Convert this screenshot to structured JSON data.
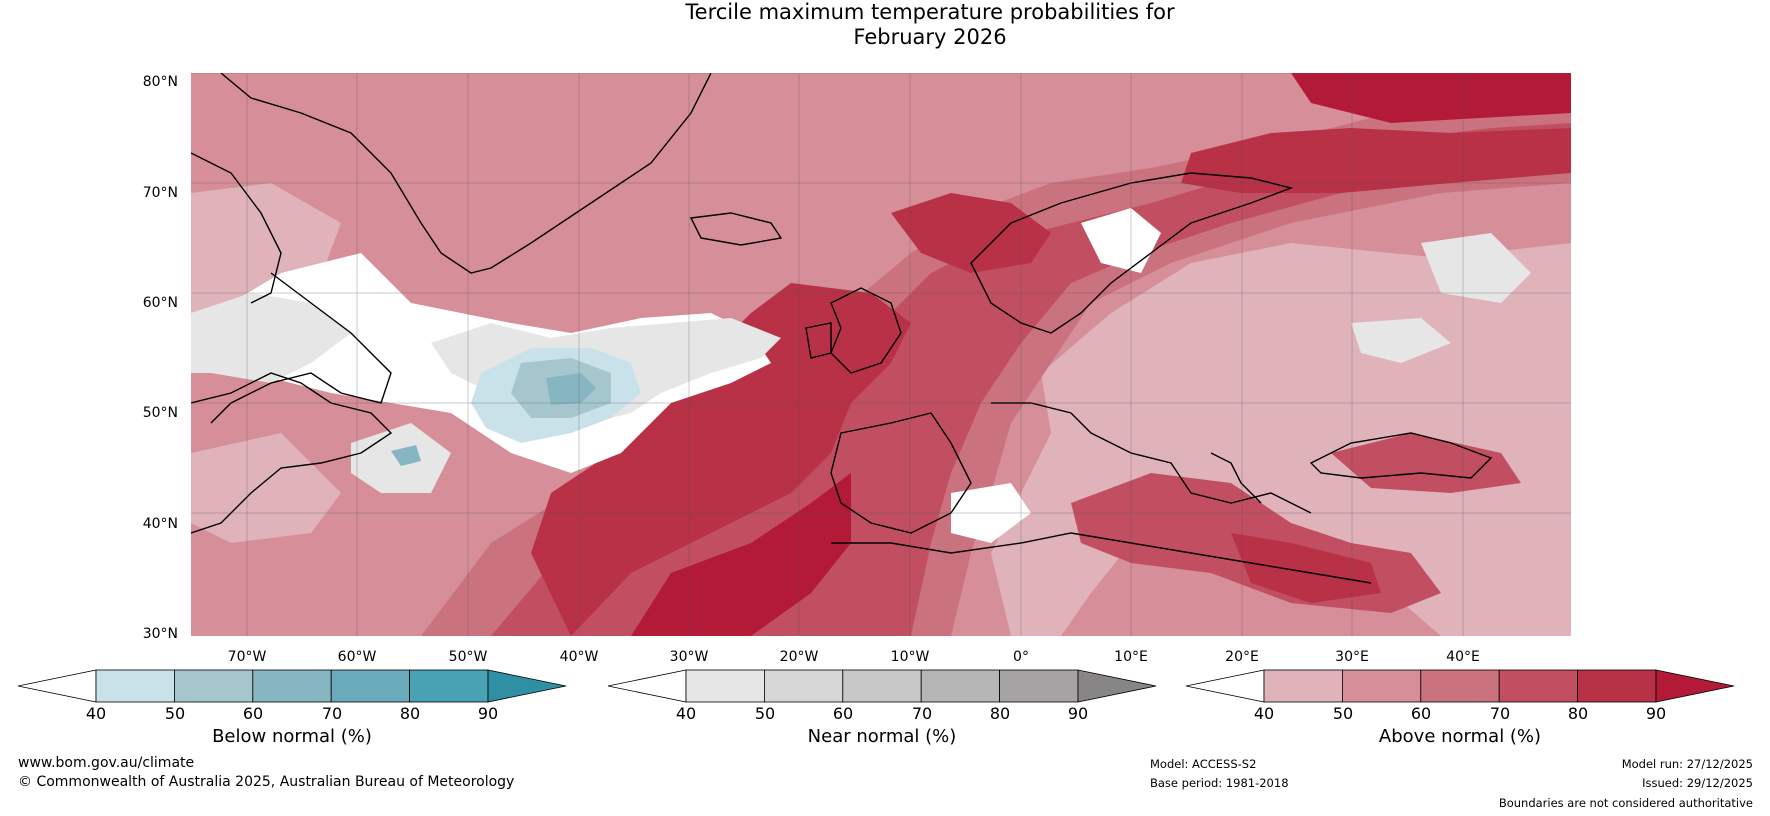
{
  "title_line1": "Tercile maximum temperature probabilities for",
  "title_line2": "February 2026",
  "map": {
    "latitude_labels": [
      "80°N",
      "70°N",
      "60°N",
      "50°N",
      "40°N",
      "30°N"
    ],
    "longitude_labels": [
      "70°W",
      "60°W",
      "50°W",
      "40°W",
      "30°W",
      "20°W",
      "10°W",
      "0°",
      "10°E",
      "20°E",
      "30°E",
      "40°E"
    ]
  },
  "legends": [
    {
      "title": "Below normal (%)",
      "ticks": [
        "40",
        "50",
        "60",
        "70",
        "80",
        "90"
      ],
      "colors": [
        "#ffffff",
        "#c9e1e8",
        "#a6c6cd",
        "#87b5c2",
        "#6aabbb",
        "#48a2b3",
        "#2f8fa3"
      ]
    },
    {
      "title": "Near normal (%)",
      "ticks": [
        "40",
        "50",
        "60",
        "70",
        "80",
        "90"
      ],
      "colors": [
        "#ffffff",
        "#e6e6e6",
        "#d7d7d7",
        "#c8c8c8",
        "#b6b6b6",
        "#a5a3a3",
        "#878585"
      ]
    },
    {
      "title": "Above normal (%)",
      "ticks": [
        "40",
        "50",
        "60",
        "70",
        "80",
        "90"
      ],
      "colors": [
        "#ffffff",
        "#e0b3bb",
        "#d68e99",
        "#cb727f",
        "#c14f61",
        "#b83146",
        "#b21a38"
      ]
    }
  ],
  "footer": {
    "website": "www.bom.gov.au/climate",
    "copyright": "© Commonwealth of Australia 2025, Australian Bureau of Meteorology",
    "model": "Model: ACCESS-S2",
    "base_period": "Base period: 1981-2018",
    "model_run": "Model run: 27/12/2025",
    "issued": "Issued: 29/12/2025",
    "disclaimer": "Boundaries are not considered authoritative"
  }
}
